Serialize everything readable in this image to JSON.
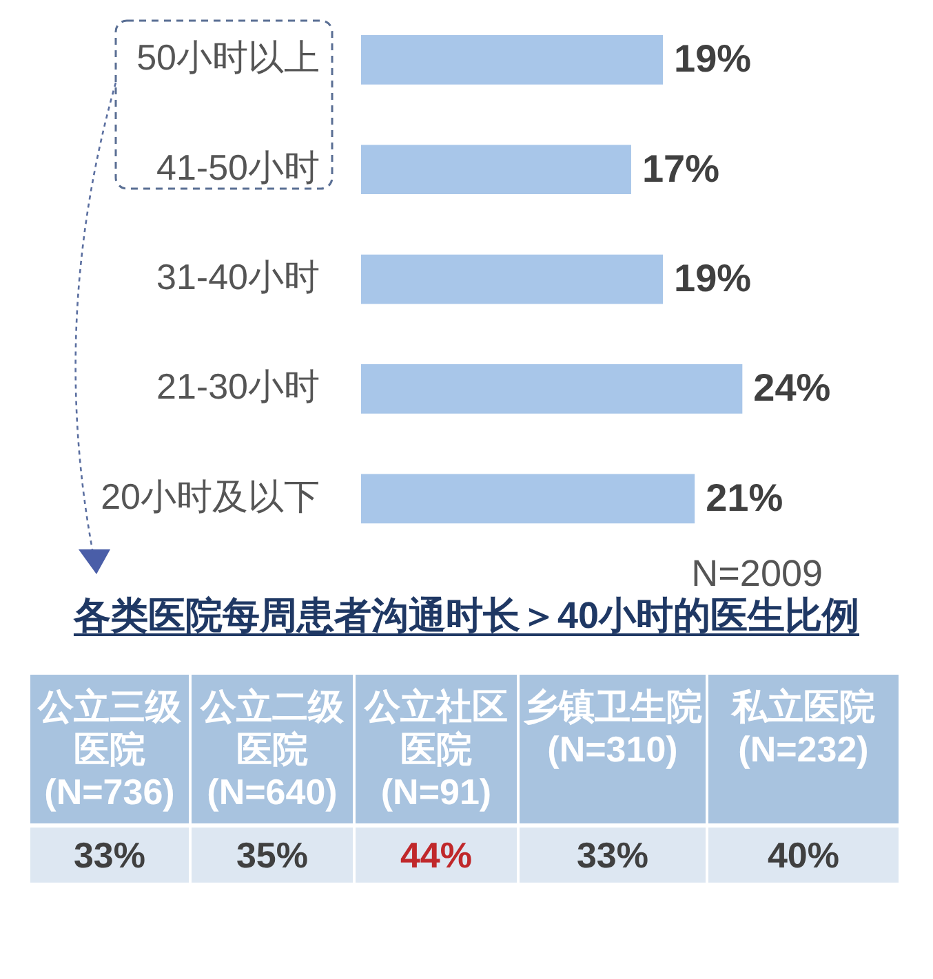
{
  "chart_data": [
    {
      "type": "bar",
      "orientation": "horizontal",
      "categories": [
        "50小时以上",
        "41-50小时",
        "31-40小时",
        "21-30小时",
        "20小时及以下"
      ],
      "values": [
        19,
        17,
        19,
        24,
        21
      ],
      "color": "#a8c6e9",
      "value_labels": [
        "19%",
        "17%",
        "19%",
        "24%",
        "21%"
      ],
      "tick_labels": "y",
      "annotations": [
        "N=2009"
      ]
    },
    {
      "type": "other",
      "title": "各类医院每周患者沟通时长＞40小时的医生比例",
      "categories": [
        "公立三级医院(N=736)",
        "公立二级医院(N=640)",
        "公立社区医院(N=91)",
        "乡镇卫生院(N=310)",
        "私立医院(N=232)"
      ],
      "values": [
        33,
        35,
        44,
        33,
        40
      ],
      "value_labels": [
        "33%",
        "35%",
        "44%",
        "33%",
        "40%"
      ],
      "color": "#dde7f2"
    }
  ]
}
